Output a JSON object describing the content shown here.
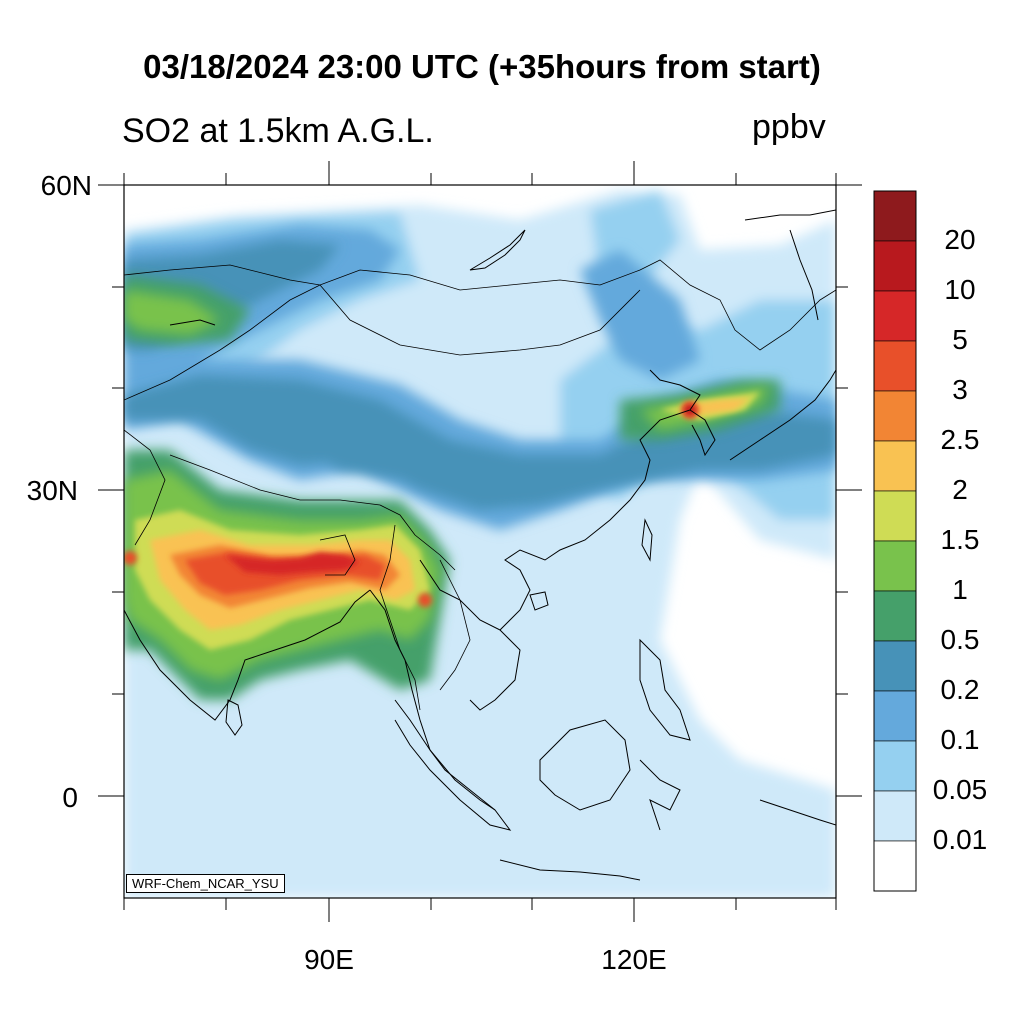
{
  "title": "03/18/2024 23:00 UTC (+35hours from start)",
  "left_label": "SO2 at 1.5km A.G.L.",
  "right_label": "ppbv",
  "credit": "WRF-Chem_NCAR_YSU",
  "lat_ticks": [
    "60N",
    "30N",
    "0"
  ],
  "lon_ticks": [
    "90E",
    "120E"
  ],
  "colorbar": {
    "levels": [
      "20",
      "10",
      "5",
      "3",
      "2.5",
      "2",
      "1.5",
      "1",
      "0.5",
      "0.2",
      "0.1",
      "0.05",
      "0.01"
    ],
    "colors": [
      "#8e1a1d",
      "#b8191e",
      "#d62728",
      "#e8502a",
      "#f28534",
      "#f9c252",
      "#cfdc55",
      "#79c24c",
      "#45a06a",
      "#4792b8",
      "#64a9dc",
      "#95d0f0",
      "#cfe9f9",
      "#ffffff"
    ]
  },
  "colors": {
    "ocean": "#ffffff",
    "border": "#000000"
  }
}
